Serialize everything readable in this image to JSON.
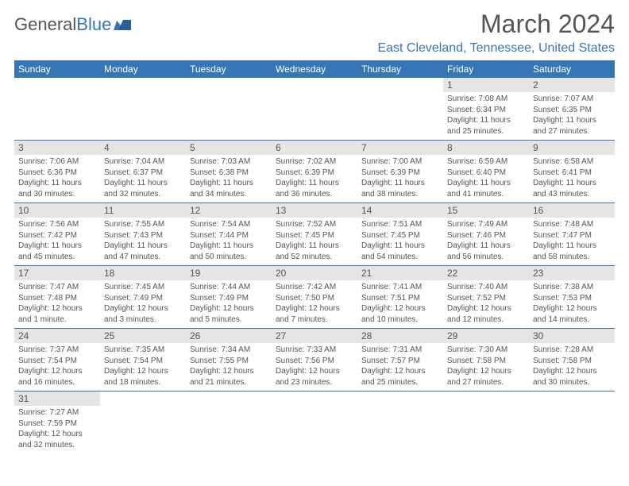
{
  "logo": {
    "part1": "General",
    "part2": "Blue"
  },
  "title": "March 2024",
  "location": "East Cleveland, Tennessee, United States",
  "day_headers": [
    "Sunday",
    "Monday",
    "Tuesday",
    "Wednesday",
    "Thursday",
    "Friday",
    "Saturday"
  ],
  "colors": {
    "header_bg": "#3776b4",
    "header_text": "#ffffff",
    "daynum_bg": "#e5e5e5",
    "body_text": "#555555",
    "accent": "#3776b4"
  },
  "fonts": {
    "title_size": 32,
    "location_size": 16,
    "header_size": 12,
    "daynum_size": 12,
    "body_size": 10
  },
  "layout": {
    "cols": 7,
    "rows": 6,
    "leading_blanks": 5
  },
  "label_sunrise": "Sunrise: ",
  "label_sunset": "Sunset: ",
  "label_daylight": "Daylight: ",
  "days": [
    {
      "n": "1",
      "sunrise": "7:08 AM",
      "sunset": "6:34 PM",
      "daylight": "11 hours and 25 minutes."
    },
    {
      "n": "2",
      "sunrise": "7:07 AM",
      "sunset": "6:35 PM",
      "daylight": "11 hours and 27 minutes."
    },
    {
      "n": "3",
      "sunrise": "7:06 AM",
      "sunset": "6:36 PM",
      "daylight": "11 hours and 30 minutes."
    },
    {
      "n": "4",
      "sunrise": "7:04 AM",
      "sunset": "6:37 PM",
      "daylight": "11 hours and 32 minutes."
    },
    {
      "n": "5",
      "sunrise": "7:03 AM",
      "sunset": "6:38 PM",
      "daylight": "11 hours and 34 minutes."
    },
    {
      "n": "6",
      "sunrise": "7:02 AM",
      "sunset": "6:39 PM",
      "daylight": "11 hours and 36 minutes."
    },
    {
      "n": "7",
      "sunrise": "7:00 AM",
      "sunset": "6:39 PM",
      "daylight": "11 hours and 38 minutes."
    },
    {
      "n": "8",
      "sunrise": "6:59 AM",
      "sunset": "6:40 PM",
      "daylight": "11 hours and 41 minutes."
    },
    {
      "n": "9",
      "sunrise": "6:58 AM",
      "sunset": "6:41 PM",
      "daylight": "11 hours and 43 minutes."
    },
    {
      "n": "10",
      "sunrise": "7:56 AM",
      "sunset": "7:42 PM",
      "daylight": "11 hours and 45 minutes."
    },
    {
      "n": "11",
      "sunrise": "7:55 AM",
      "sunset": "7:43 PM",
      "daylight": "11 hours and 47 minutes."
    },
    {
      "n": "12",
      "sunrise": "7:54 AM",
      "sunset": "7:44 PM",
      "daylight": "11 hours and 50 minutes."
    },
    {
      "n": "13",
      "sunrise": "7:52 AM",
      "sunset": "7:45 PM",
      "daylight": "11 hours and 52 minutes."
    },
    {
      "n": "14",
      "sunrise": "7:51 AM",
      "sunset": "7:45 PM",
      "daylight": "11 hours and 54 minutes."
    },
    {
      "n": "15",
      "sunrise": "7:49 AM",
      "sunset": "7:46 PM",
      "daylight": "11 hours and 56 minutes."
    },
    {
      "n": "16",
      "sunrise": "7:48 AM",
      "sunset": "7:47 PM",
      "daylight": "11 hours and 58 minutes."
    },
    {
      "n": "17",
      "sunrise": "7:47 AM",
      "sunset": "7:48 PM",
      "daylight": "12 hours and 1 minute."
    },
    {
      "n": "18",
      "sunrise": "7:45 AM",
      "sunset": "7:49 PM",
      "daylight": "12 hours and 3 minutes."
    },
    {
      "n": "19",
      "sunrise": "7:44 AM",
      "sunset": "7:49 PM",
      "daylight": "12 hours and 5 minutes."
    },
    {
      "n": "20",
      "sunrise": "7:42 AM",
      "sunset": "7:50 PM",
      "daylight": "12 hours and 7 minutes."
    },
    {
      "n": "21",
      "sunrise": "7:41 AM",
      "sunset": "7:51 PM",
      "daylight": "12 hours and 10 minutes."
    },
    {
      "n": "22",
      "sunrise": "7:40 AM",
      "sunset": "7:52 PM",
      "daylight": "12 hours and 12 minutes."
    },
    {
      "n": "23",
      "sunrise": "7:38 AM",
      "sunset": "7:53 PM",
      "daylight": "12 hours and 14 minutes."
    },
    {
      "n": "24",
      "sunrise": "7:37 AM",
      "sunset": "7:54 PM",
      "daylight": "12 hours and 16 minutes."
    },
    {
      "n": "25",
      "sunrise": "7:35 AM",
      "sunset": "7:54 PM",
      "daylight": "12 hours and 18 minutes."
    },
    {
      "n": "26",
      "sunrise": "7:34 AM",
      "sunset": "7:55 PM",
      "daylight": "12 hours and 21 minutes."
    },
    {
      "n": "27",
      "sunrise": "7:33 AM",
      "sunset": "7:56 PM",
      "daylight": "12 hours and 23 minutes."
    },
    {
      "n": "28",
      "sunrise": "7:31 AM",
      "sunset": "7:57 PM",
      "daylight": "12 hours and 25 minutes."
    },
    {
      "n": "29",
      "sunrise": "7:30 AM",
      "sunset": "7:58 PM",
      "daylight": "12 hours and 27 minutes."
    },
    {
      "n": "30",
      "sunrise": "7:28 AM",
      "sunset": "7:58 PM",
      "daylight": "12 hours and 30 minutes."
    },
    {
      "n": "31",
      "sunrise": "7:27 AM",
      "sunset": "7:59 PM",
      "daylight": "12 hours and 32 minutes."
    }
  ]
}
